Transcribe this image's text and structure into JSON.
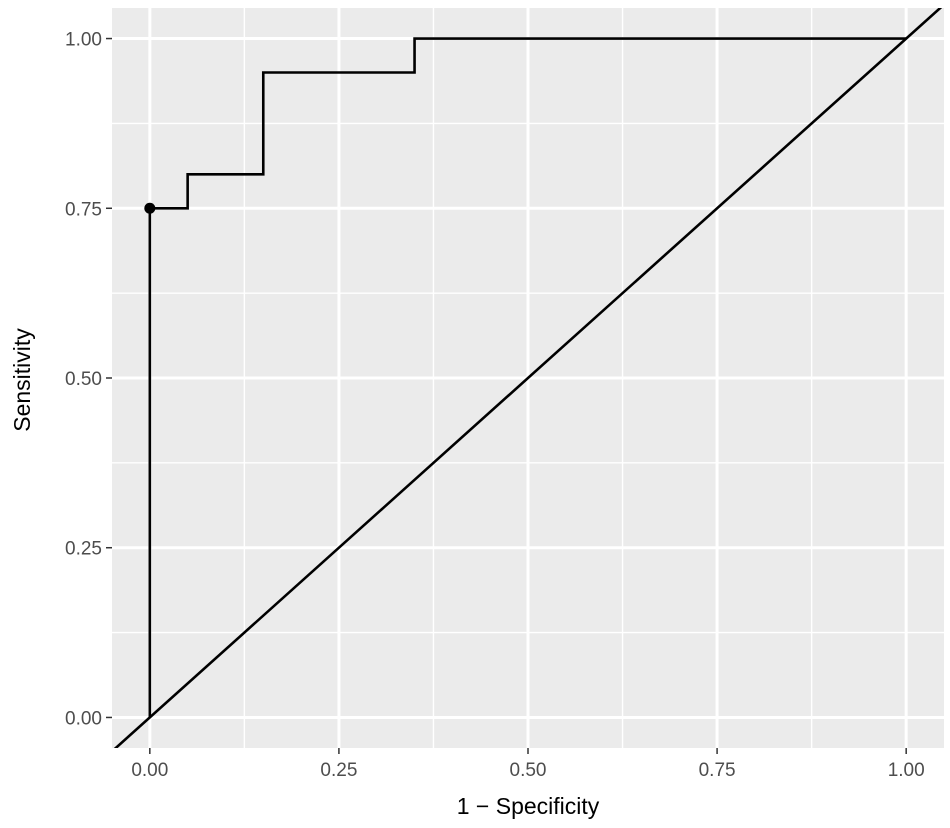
{
  "chart_data": {
    "type": "line",
    "xlabel": "1 − Specificity",
    "ylabel": "Sensitivity",
    "xlim": [
      -0.05,
      1.05
    ],
    "ylim": [
      -0.045,
      1.045
    ],
    "x_ticks": [
      0.0,
      0.25,
      0.5,
      0.75,
      1.0
    ],
    "x_tick_labels": [
      "0.00",
      "0.25",
      "0.50",
      "0.75",
      "1.00"
    ],
    "y_ticks": [
      0.0,
      0.25,
      0.5,
      0.75,
      1.0
    ],
    "y_tick_labels": [
      "0.00",
      "0.25",
      "0.50",
      "0.75",
      "1.00"
    ],
    "grid": true,
    "background": "#ebebeb",
    "grid_color": "#ffffff",
    "line_color": "#000000",
    "series": [
      {
        "kind": "roc-step",
        "x": [
          0.0,
          0.0,
          0.05,
          0.05,
          0.15,
          0.15,
          0.35,
          0.35,
          1.0
        ],
        "y": [
          0.0,
          0.75,
          0.75,
          0.8,
          0.8,
          0.95,
          0.95,
          1.0,
          1.0
        ]
      },
      {
        "kind": "reference-diagonal",
        "slope": 1,
        "intercept": 0
      }
    ],
    "points": [
      {
        "x": 0.0,
        "y": 0.75
      }
    ]
  }
}
